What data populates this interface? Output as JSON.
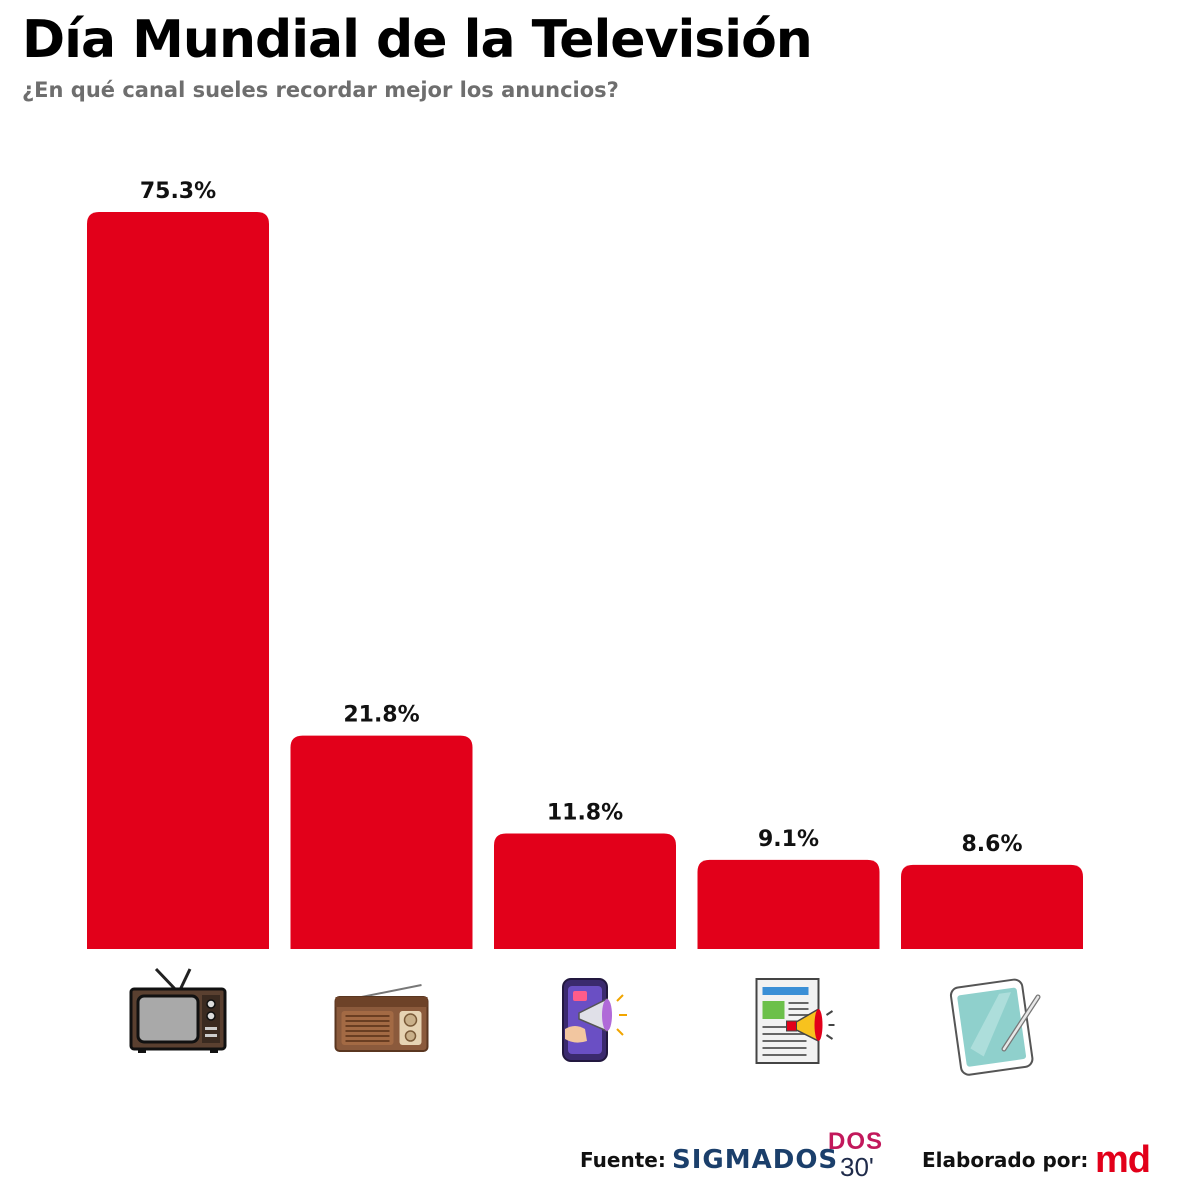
{
  "title": "Día Mundial de la Televisión",
  "subtitle": "¿En qué canal sueles recordar mejor los anuncios?",
  "colors": {
    "bar": "#e2001a",
    "title": "#000000",
    "subtitle": "#6e6e6e"
  },
  "chart_data": {
    "type": "bar",
    "title": "Día Mundial de la Televisión",
    "subtitle": "¿En qué canal sueles recordar mejor los anuncios?",
    "categories": [
      "tv-icon",
      "radio-icon",
      "mobile-ads-icon",
      "newspaper-ads-icon",
      "tablet-icon"
    ],
    "values": [
      75.3,
      21.8,
      11.8,
      9.1,
      8.6
    ],
    "value_labels": [
      "75.3%",
      "21.8%",
      "11.8%",
      "9.1%",
      "8.6%"
    ],
    "xlabel": "",
    "ylabel": "",
    "ylim": [
      0,
      75.3
    ],
    "grid": false,
    "legend": "none"
  },
  "footer": {
    "source_label": "Fuente:",
    "source_name": "SIGMADOS",
    "partner_logo_top": "DOS",
    "partner_logo_bottom": "30'",
    "made_by_label": "Elaborado por:",
    "made_by_logo": "md"
  }
}
